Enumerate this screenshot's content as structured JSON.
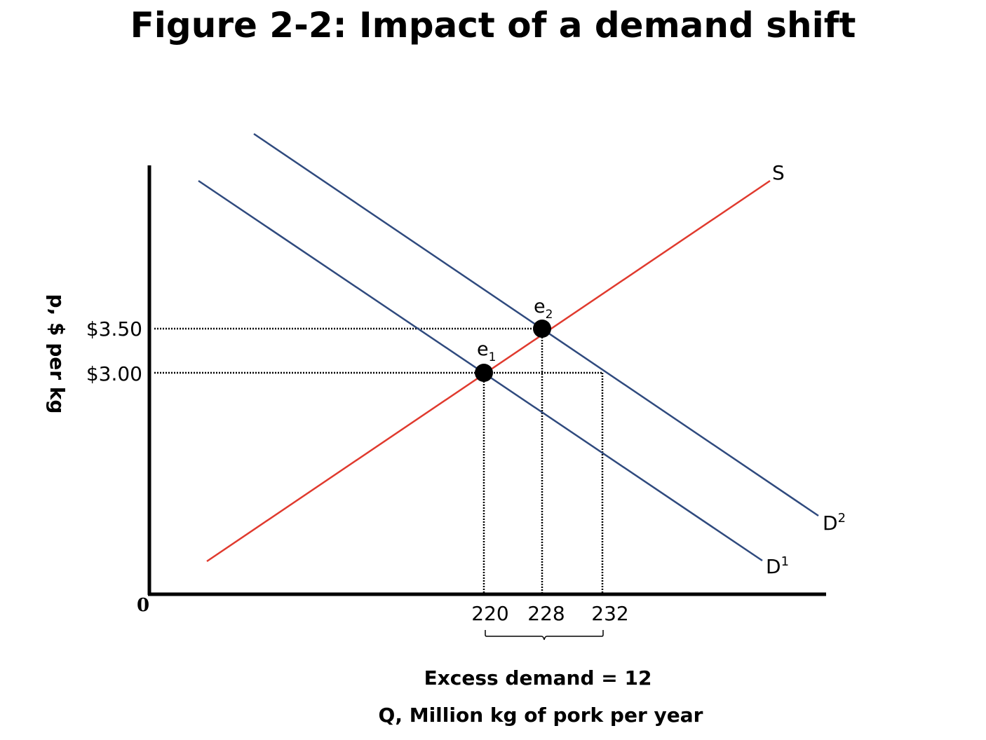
{
  "title": "Figure 2-2: Impact of a demand shift",
  "y_axis": {
    "title": "p, $ per kg",
    "ticks": [
      "$3.50",
      "$3.00"
    ]
  },
  "x_axis": {
    "origin": "0",
    "ticks": [
      "220",
      "228",
      "232"
    ],
    "title": "Q, Million kg of pork per year"
  },
  "curves": {
    "supply": "S",
    "demand1": {
      "base": "D",
      "sup": "1"
    },
    "demand2": {
      "base": "D",
      "sup": "2"
    }
  },
  "equilibria": {
    "e1": {
      "base": "e",
      "sub": "1",
      "q": 220,
      "p": 3.0
    },
    "e2": {
      "base": "e",
      "sub": "2",
      "q": 228,
      "p": 3.5
    }
  },
  "annotation": "Excess demand = 12",
  "colors": {
    "supply": "#e03a2e",
    "demand": "#2f4a7e",
    "axes": "#000000"
  }
}
